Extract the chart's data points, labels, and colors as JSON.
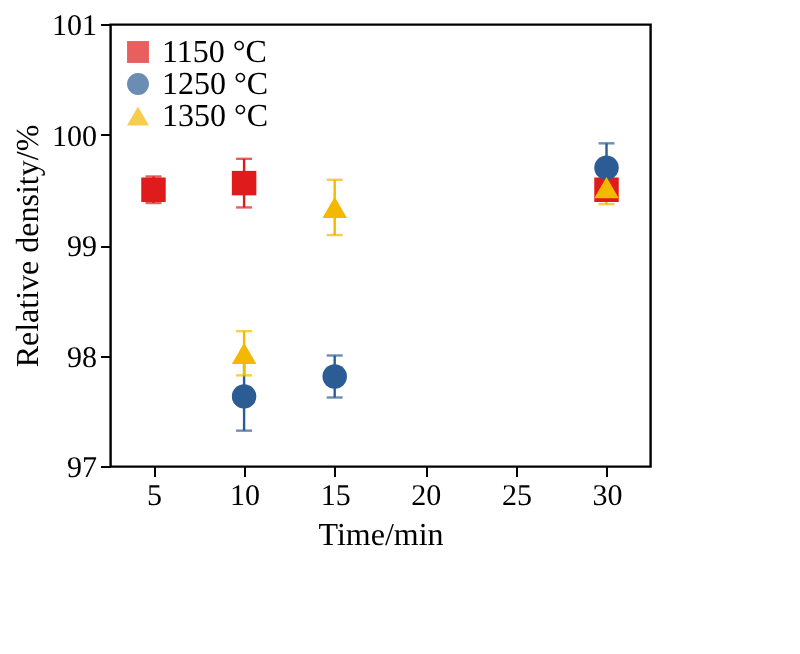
{
  "chart_data": {
    "type": "scatter",
    "xlabel": "Time/min",
    "ylabel": "Relative density/%",
    "xlim": [
      2.6,
      32.4
    ],
    "ylim": [
      97,
      101
    ],
    "xticks": [
      5,
      10,
      15,
      20,
      25,
      30
    ],
    "yticks": [
      97,
      98,
      99,
      100,
      101
    ],
    "grid": false,
    "legend": "top left",
    "series": [
      {
        "name": "1150 °C",
        "color": "#e01b1b",
        "marker": "square",
        "x": [
          5,
          10,
          30
        ],
        "values": [
          99.5,
          99.56,
          99.5
        ],
        "errors": [
          0.12,
          0.22,
          0.1
        ]
      },
      {
        "name": "1250 °C",
        "color": "#2c5c94",
        "marker": "circle",
        "x": [
          10,
          15,
          30
        ],
        "values": [
          97.63,
          97.81,
          99.7
        ],
        "errors": [
          0.31,
          0.19,
          0.22
        ]
      },
      {
        "name": "1350 °C",
        "color": "#f4b800",
        "marker": "triangle",
        "x": [
          10,
          15,
          30
        ],
        "values": [
          98.02,
          99.34,
          99.52
        ],
        "errors": [
          0.2,
          0.25,
          0.15
        ]
      }
    ]
  }
}
